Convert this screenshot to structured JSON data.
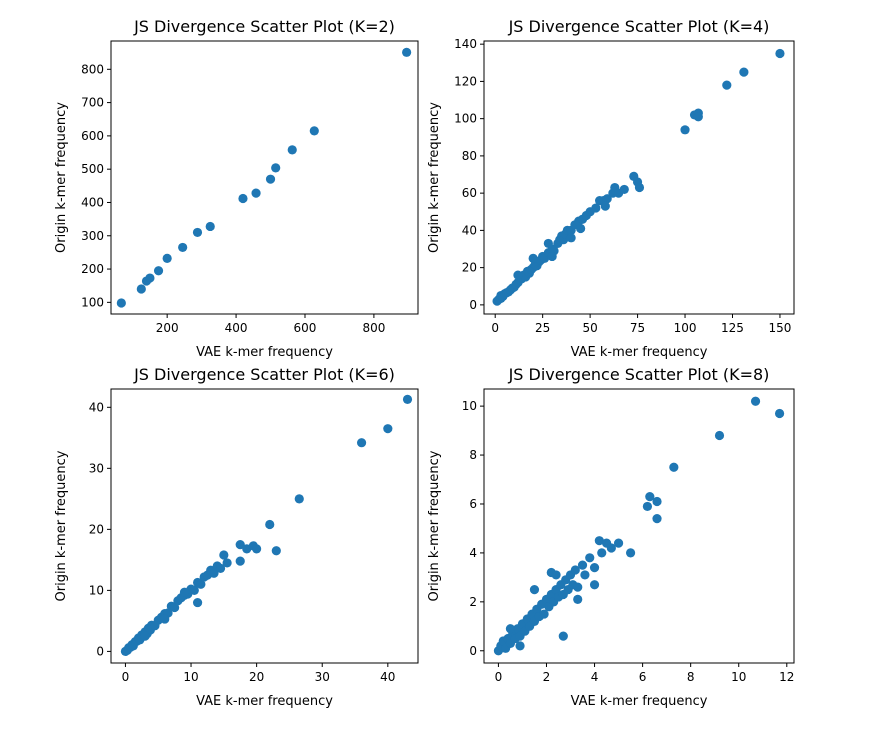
{
  "chart_data": [
    {
      "type": "scatter",
      "title": "JS Divergence Scatter Plot (K=2)",
      "xlabel": "VAE k-mer frequency",
      "ylabel": "Origin k-mer frequency",
      "xlim": [
        37,
        928
      ],
      "ylim": [
        65,
        885
      ],
      "xticks": [
        200,
        400,
        600,
        800
      ],
      "yticks": [
        100,
        200,
        300,
        400,
        500,
        600,
        700,
        800
      ],
      "color": "#1f77b4",
      "points": [
        [
          67,
          98
        ],
        [
          125,
          140
        ],
        [
          140,
          164
        ],
        [
          150,
          173
        ],
        [
          175,
          195
        ],
        [
          200,
          232
        ],
        [
          245,
          265
        ],
        [
          288,
          310
        ],
        [
          325,
          328
        ],
        [
          420,
          412
        ],
        [
          458,
          428
        ],
        [
          500,
          470
        ],
        [
          515,
          504
        ],
        [
          563,
          558
        ],
        [
          627,
          615
        ],
        [
          895,
          851
        ]
      ]
    },
    {
      "type": "scatter",
      "title": "JS Divergence Scatter Plot (K=4)",
      "xlabel": "VAE k-mer frequency",
      "ylabel": "Origin k-mer frequency",
      "xlim": [
        -5.9,
        157.4
      ],
      "ylim": [
        -4.9,
        141.7
      ],
      "xticks": [
        0,
        25,
        50,
        75,
        100,
        125,
        150
      ],
      "yticks": [
        0,
        20,
        40,
        60,
        80,
        100,
        120,
        140
      ],
      "color": "#1f77b4",
      "points": [
        [
          1,
          2
        ],
        [
          2,
          3
        ],
        [
          3,
          3.5
        ],
        [
          3,
          5
        ],
        [
          4,
          4.5
        ],
        [
          5,
          6
        ],
        [
          6,
          6.5
        ],
        [
          7,
          7
        ],
        [
          8,
          8
        ],
        [
          9,
          9
        ],
        [
          10,
          9.5
        ],
        [
          11,
          11
        ],
        [
          12,
          12
        ],
        [
          13,
          13.5
        ],
        [
          14,
          14
        ],
        [
          15,
          16
        ],
        [
          16,
          15
        ],
        [
          17,
          18
        ],
        [
          18,
          17
        ],
        [
          19,
          19
        ],
        [
          20,
          20
        ],
        [
          21,
          21.5
        ],
        [
          22,
          21
        ],
        [
          23,
          23
        ],
        [
          24,
          24
        ],
        [
          25,
          26
        ],
        [
          26,
          25
        ],
        [
          28,
          28
        ],
        [
          30,
          30
        ],
        [
          31,
          29
        ],
        [
          33,
          33
        ],
        [
          34,
          35
        ],
        [
          35,
          37
        ],
        [
          36,
          35
        ],
        [
          37,
          38
        ],
        [
          38,
          40
        ],
        [
          40,
          40
        ],
        [
          42,
          43
        ],
        [
          44,
          45
        ],
        [
          46,
          46
        ],
        [
          48,
          48
        ],
        [
          45,
          41
        ],
        [
          50,
          50
        ],
        [
          53,
          52
        ],
        [
          55,
          56
        ],
        [
          57,
          56
        ],
        [
          59,
          57
        ],
        [
          62,
          60
        ],
        [
          63,
          63
        ],
        [
          65,
          60
        ],
        [
          68,
          62
        ],
        [
          73,
          69
        ],
        [
          75,
          66
        ],
        [
          76,
          63
        ],
        [
          28,
          33
        ],
        [
          20,
          25
        ],
        [
          12,
          16
        ],
        [
          30,
          26
        ],
        [
          40,
          36
        ],
        [
          58,
          53
        ],
        [
          100,
          94
        ],
        [
          105,
          102
        ],
        [
          107,
          103
        ],
        [
          107,
          101
        ],
        [
          122,
          118
        ],
        [
          131,
          125
        ],
        [
          150,
          135
        ]
      ]
    },
    {
      "type": "scatter",
      "title": "JS Divergence Scatter Plot (K=6)",
      "xlabel": "VAE k-mer frequency",
      "ylabel": "Origin k-mer frequency",
      "xlim": [
        -2.2,
        44.6
      ],
      "ylim": [
        -1.9,
        43.0
      ],
      "xticks": [
        0,
        10,
        20,
        30,
        40
      ],
      "yticks": [
        0,
        10,
        20,
        30,
        40
      ],
      "color": "#1f77b4",
      "points": [
        [
          0,
          0
        ],
        [
          0.3,
          0.2
        ],
        [
          0.5,
          0.6
        ],
        [
          0.8,
          0.7
        ],
        [
          1,
          1.1
        ],
        [
          1.2,
          0.9
        ],
        [
          1.5,
          1.6
        ],
        [
          1.8,
          1.7
        ],
        [
          2,
          2.2
        ],
        [
          2.2,
          1.9
        ],
        [
          2.5,
          2.7
        ],
        [
          2.8,
          2.5
        ],
        [
          3,
          3.2
        ],
        [
          3.3,
          2.9
        ],
        [
          3.5,
          3.8
        ],
        [
          3.8,
          3.5
        ],
        [
          4,
          4.3
        ],
        [
          4.5,
          4.2
        ],
        [
          5,
          5.1
        ],
        [
          5.5,
          5.6
        ],
        [
          6,
          6.2
        ],
        [
          6.5,
          6.3
        ],
        [
          7,
          7.4
        ],
        [
          7.5,
          7.2
        ],
        [
          8,
          8.3
        ],
        [
          8.5,
          8.8
        ],
        [
          9,
          9.2
        ],
        [
          9.5,
          9.4
        ],
        [
          10,
          10.2
        ],
        [
          10.5,
          10
        ],
        [
          11,
          11.3
        ],
        [
          11.5,
          11
        ],
        [
          12,
          12.2
        ],
        [
          12.5,
          12.5
        ],
        [
          13,
          13.3
        ],
        [
          13.5,
          12.8
        ],
        [
          14,
          14
        ],
        [
          14.5,
          13.6
        ],
        [
          15,
          15.8
        ],
        [
          15.5,
          14.5
        ],
        [
          17.5,
          17.5
        ],
        [
          18.5,
          16.8
        ],
        [
          19.5,
          17.3
        ],
        [
          20,
          16.8
        ],
        [
          17.5,
          14.8
        ],
        [
          11,
          8
        ],
        [
          9,
          9.7
        ],
        [
          6,
          5.3
        ],
        [
          3,
          2.5
        ],
        [
          22,
          20.8
        ],
        [
          23,
          16.5
        ],
        [
          26.5,
          25
        ],
        [
          36,
          34.2
        ],
        [
          40,
          36.5
        ],
        [
          43,
          41.3
        ]
      ]
    },
    {
      "type": "scatter",
      "title": "JS Divergence Scatter Plot (K=8)",
      "xlabel": "VAE k-mer frequency",
      "ylabel": "Origin k-mer frequency",
      "xlim": [
        -0.6,
        12.3
      ],
      "ylim": [
        -0.5,
        10.7
      ],
      "xticks": [
        0,
        2,
        4,
        6,
        8,
        10,
        12
      ],
      "yticks": [
        0,
        2,
        4,
        6,
        8,
        10
      ],
      "color": "#1f77b4",
      "points": [
        [
          0,
          0
        ],
        [
          0.1,
          0.2
        ],
        [
          0.2,
          0.4
        ],
        [
          0.3,
          0.1
        ],
        [
          0.4,
          0.5
        ],
        [
          0.5,
          0.3
        ],
        [
          0.6,
          0.7
        ],
        [
          0.7,
          0.5
        ],
        [
          0.8,
          0.9
        ],
        [
          0.9,
          0.6
        ],
        [
          1,
          1.1
        ],
        [
          1.1,
          0.8
        ],
        [
          1.2,
          1.3
        ],
        [
          1.3,
          1
        ],
        [
          1.4,
          1.5
        ],
        [
          1.5,
          1.2
        ],
        [
          1.6,
          1.7
        ],
        [
          1.7,
          1.4
        ],
        [
          1.8,
          1.9
        ],
        [
          1.9,
          1.5
        ],
        [
          2,
          2.1
        ],
        [
          2.1,
          1.8
        ],
        [
          2.2,
          2.3
        ],
        [
          2.3,
          2
        ],
        [
          2.4,
          2.5
        ],
        [
          2.5,
          2.2
        ],
        [
          2.6,
          2.7
        ],
        [
          2.7,
          2.3
        ],
        [
          2.8,
          2.9
        ],
        [
          2.9,
          2.5
        ],
        [
          3,
          3.1
        ],
        [
          3.1,
          2.7
        ],
        [
          3.2,
          3.3
        ],
        [
          3.3,
          2.6
        ],
        [
          3.5,
          3.5
        ],
        [
          3.6,
          3.1
        ],
        [
          3.8,
          3.8
        ],
        [
          4,
          3.4
        ],
        [
          4.2,
          4.5
        ],
        [
          4.3,
          4
        ],
        [
          4.5,
          4.4
        ],
        [
          4.7,
          4.2
        ],
        [
          5,
          4.4
        ],
        [
          5.5,
          4
        ],
        [
          4,
          2.7
        ],
        [
          3.3,
          2.1
        ],
        [
          2.7,
          0.6
        ],
        [
          1.5,
          2.5
        ],
        [
          2.2,
          3.2
        ],
        [
          2.4,
          3.1
        ],
        [
          0.5,
          0.9
        ],
        [
          0.9,
          0.2
        ],
        [
          6.2,
          5.9
        ],
        [
          6.3,
          6.3
        ],
        [
          6.6,
          6.1
        ],
        [
          6.6,
          5.4
        ],
        [
          7.3,
          7.5
        ],
        [
          9.2,
          8.8
        ],
        [
          10.7,
          10.2
        ],
        [
          11.7,
          9.7
        ]
      ]
    }
  ]
}
